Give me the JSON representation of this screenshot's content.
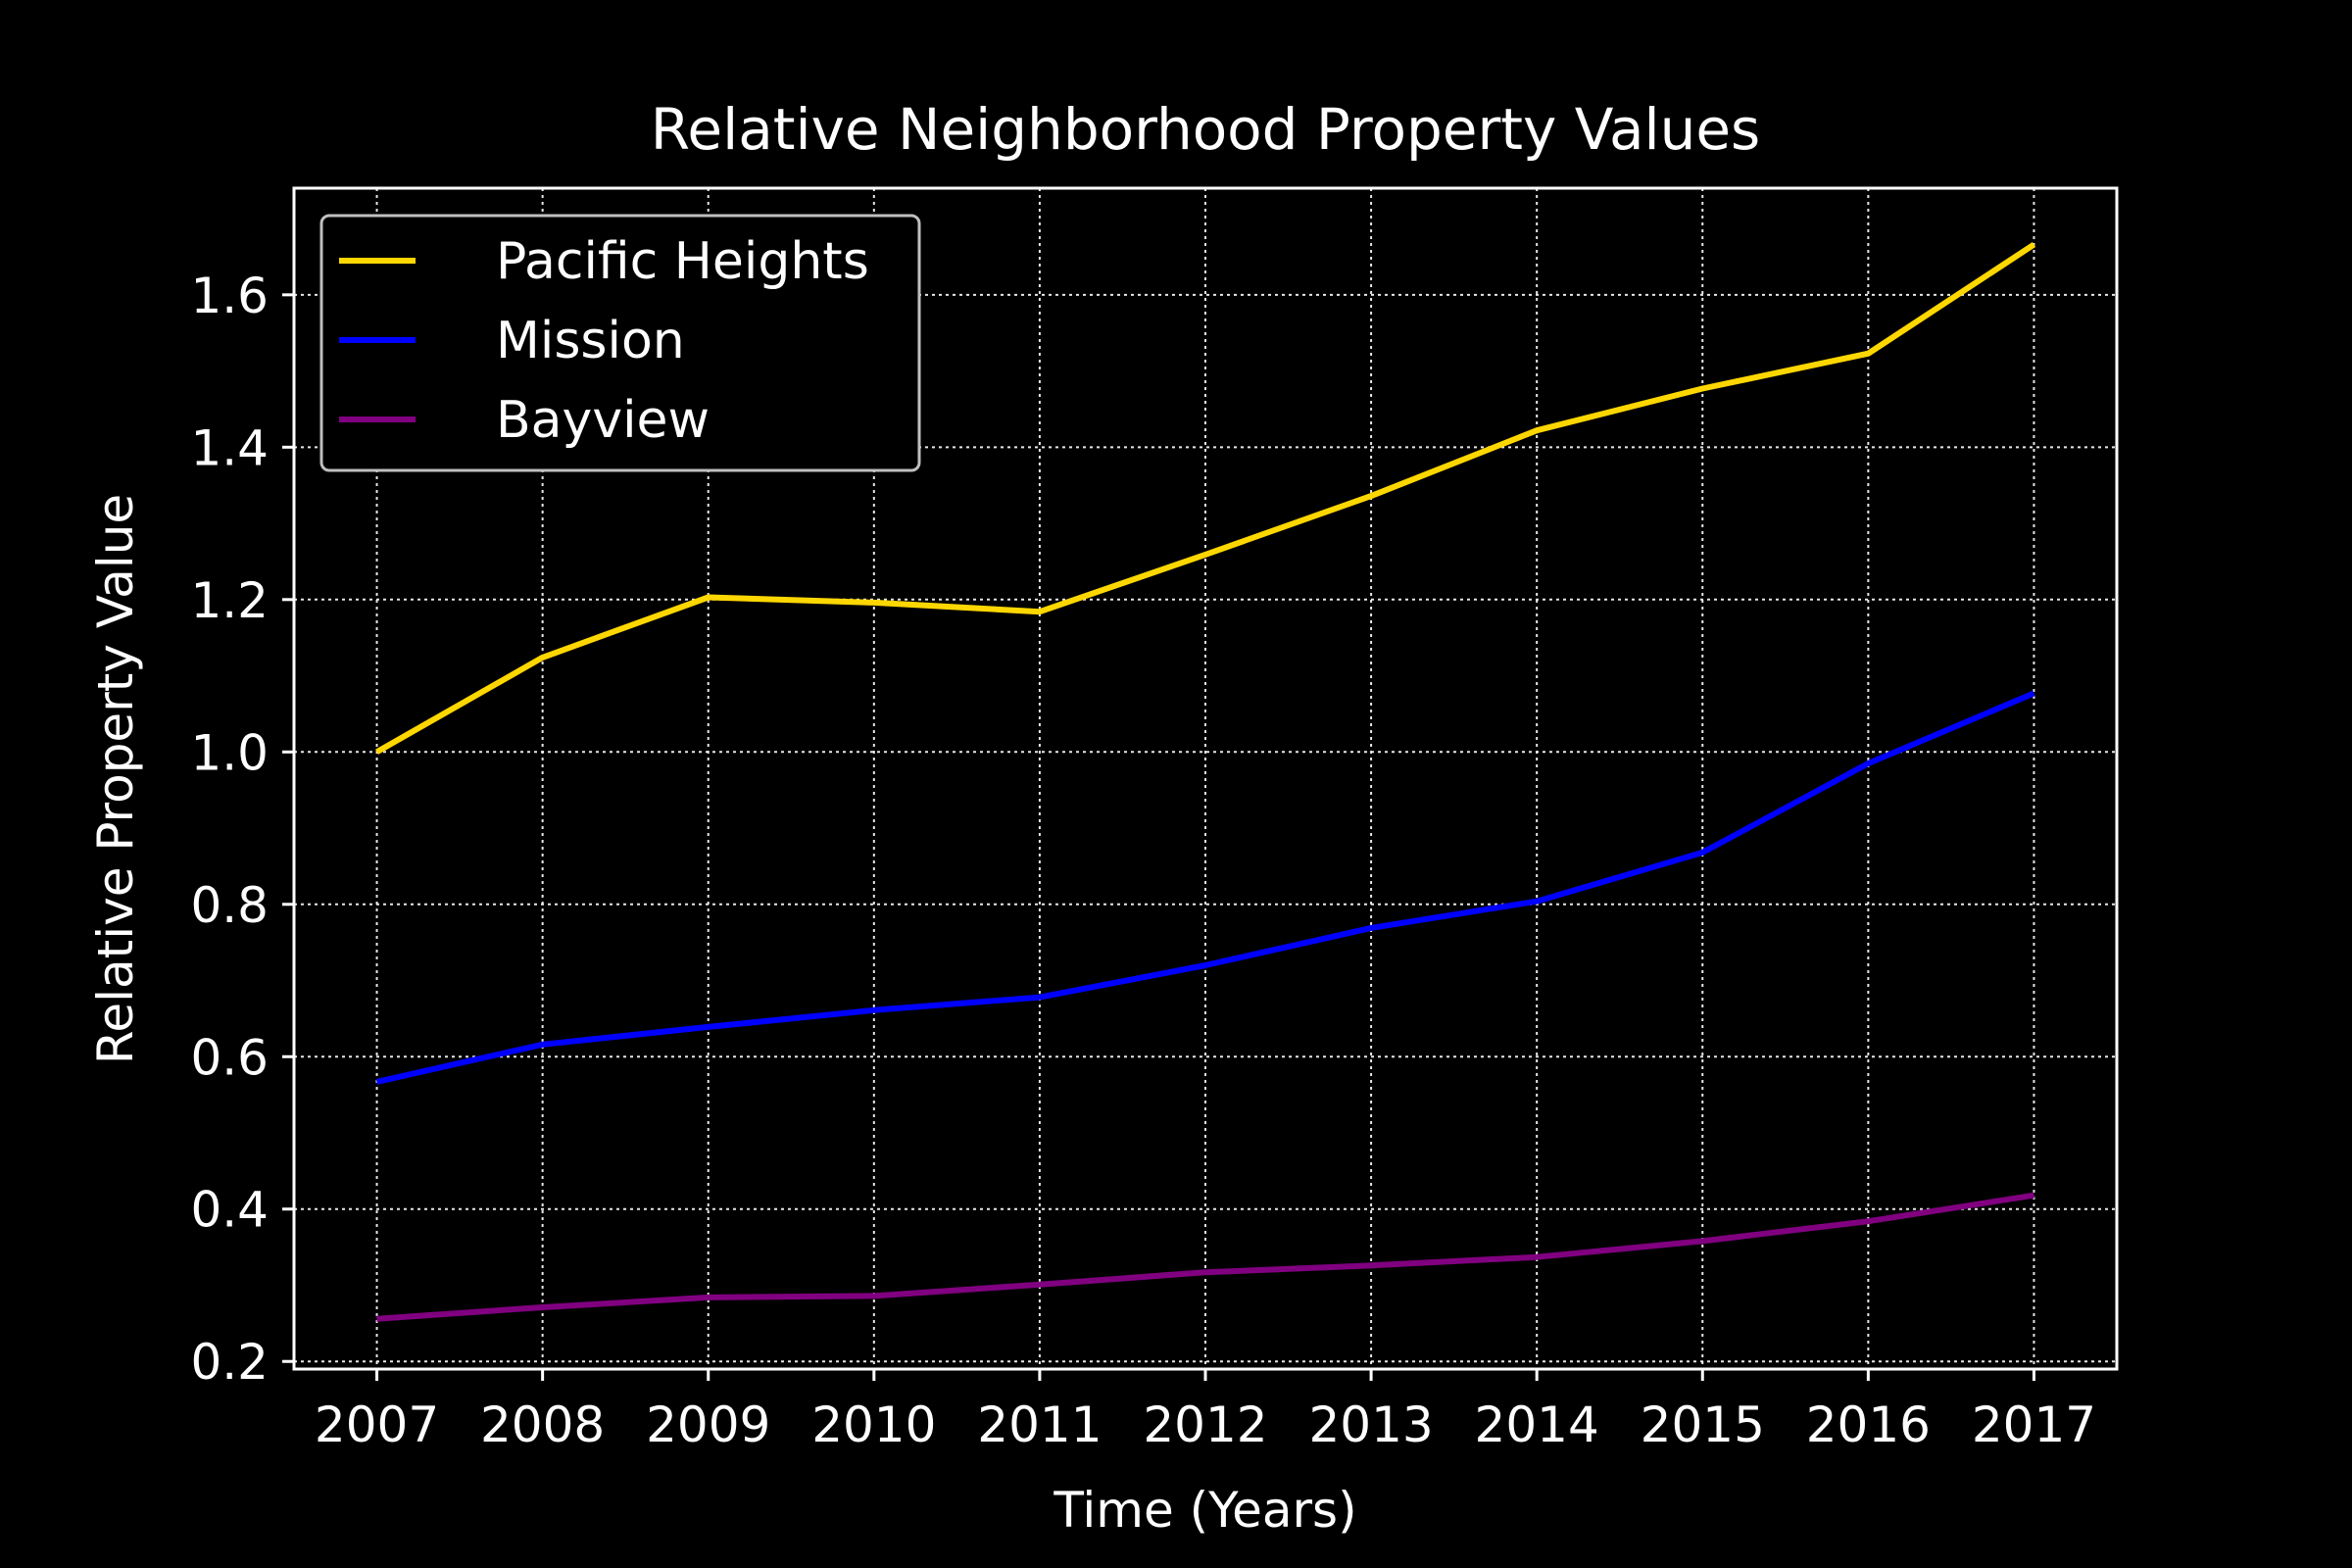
{
  "chart_data": {
    "type": "line",
    "title": "Relative Neighborhood Property Values",
    "xlabel": "Time (Years)",
    "ylabel": "Relative Property Value",
    "x": [
      2007,
      2008,
      2009,
      2010,
      2011,
      2012,
      2013,
      2014,
      2015,
      2016,
      2017
    ],
    "xtick_labels": [
      "2007",
      "2008",
      "2009",
      "2010",
      "2011",
      "2012",
      "2013",
      "2014",
      "2015",
      "2016",
      "2017"
    ],
    "yticks": [
      0.2,
      0.4,
      0.6,
      0.8,
      1.0,
      1.2,
      1.4,
      1.6
    ],
    "ytick_labels": [
      "0.2",
      "0.4",
      "0.6",
      "0.8",
      "1.0",
      "1.2",
      "1.4",
      "1.6"
    ],
    "xlim": [
      2006.5,
      2017.5
    ],
    "ylim": [
      0.19,
      1.74
    ],
    "grid": true,
    "legend_position": "top-left",
    "background": "#000000",
    "series": [
      {
        "name": "Pacific Heights",
        "color": "#ffd700",
        "values": [
          1.0,
          1.124,
          1.203,
          1.196,
          1.184,
          1.259,
          1.336,
          1.422,
          1.477,
          1.523,
          1.666
        ]
      },
      {
        "name": "Mission",
        "color": "#0000ff",
        "values": [
          0.567,
          0.616,
          0.639,
          0.661,
          0.678,
          0.72,
          0.769,
          0.804,
          0.868,
          0.985,
          1.077
        ]
      },
      {
        "name": "Bayview",
        "color": "#800080",
        "values": [
          0.256,
          0.271,
          0.284,
          0.286,
          0.301,
          0.317,
          0.326,
          0.337,
          0.358,
          0.384,
          0.418
        ]
      }
    ]
  }
}
